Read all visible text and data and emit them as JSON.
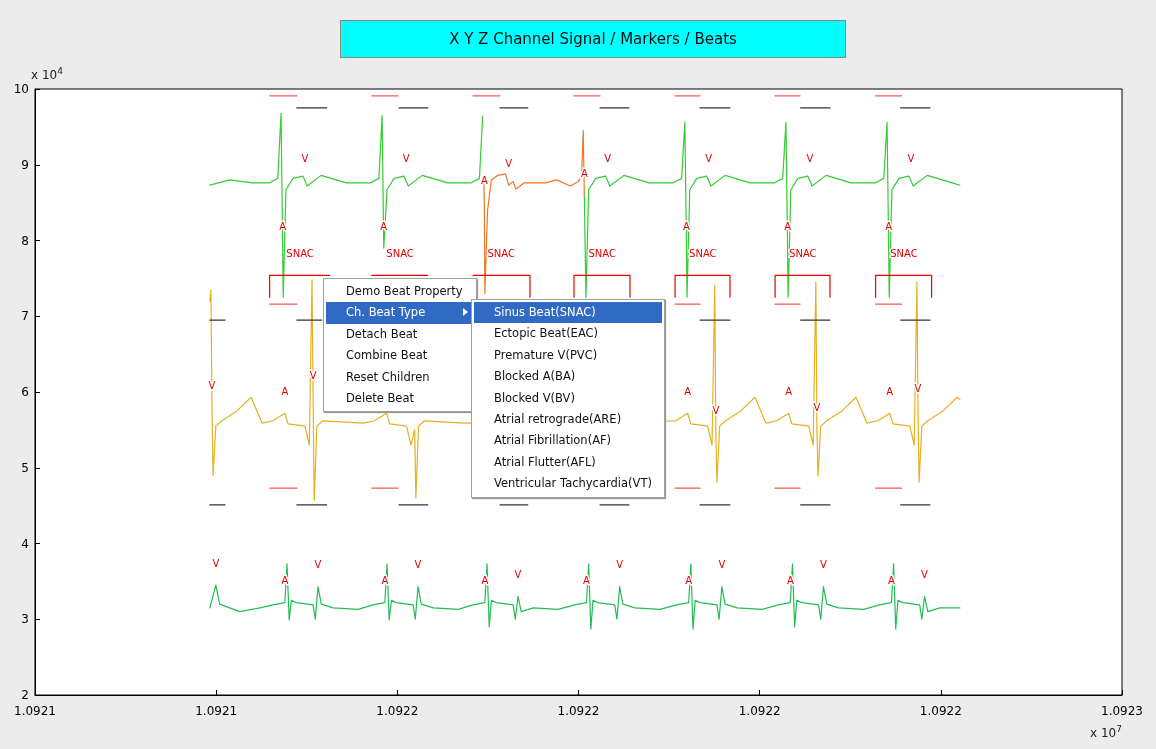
{
  "chart_data": {
    "type": "line",
    "title": "X Y Z Channel Signal / Markers / Beats",
    "grid": false,
    "xlim": [
      1.09208333,
      1.09228333
    ],
    "xticks": [
      {
        "value": 1.09208333,
        "label": "1.0921"
      },
      {
        "value": 1.09211667,
        "label": "1.0921"
      },
      {
        "value": 1.09215,
        "label": "1.0922"
      },
      {
        "value": 1.09218333,
        "label": "1.0922"
      },
      {
        "value": 1.09221667,
        "label": "1.0922"
      },
      {
        "value": 1.09225,
        "label": "1.0922"
      },
      {
        "value": 1.09228333,
        "label": "1.0923"
      }
    ],
    "ylim": [
      2,
      10
    ],
    "yticks": [
      2,
      3,
      4,
      5,
      6,
      7,
      8,
      9,
      10
    ],
    "series": [
      {
        "color": "#33cc33",
        "x": [
          1.0921155,
          1.0921192,
          1.0921233,
          1.0921264,
          1.092128,
          1.0921286,
          1.0921289,
          1.092129,
          1.0921295,
          1.0921308,
          1.0921326,
          1.092133,
          1.0921334,
          1.092136,
          1.0921406,
          1.092145,
          1.0921466,
          1.0921472,
          1.0921475,
          1.0921481,
          1.0921494,
          1.0921512,
          1.0921516,
          1.092152,
          1.0921546,
          1.0921592,
          1.0921635,
          1.0921651,
          1.0921657,
          null,
          1.0921844,
          1.0921847,
          1.0921852,
          1.0921865,
          1.0921883,
          1.0921887,
          1.0921891,
          1.0921917,
          1.0921963,
          1.0922007,
          1.0922023,
          1.0922029,
          1.0922032,
          1.0922033,
          1.0922038,
          1.0922051,
          1.0922069,
          1.0922073,
          1.0922077,
          1.0922103,
          1.0922149,
          1.0922193,
          1.0922209,
          1.0922215,
          1.0922218,
          1.0922219,
          1.0922224,
          1.0922237,
          1.0922255,
          1.0922259,
          1.0922263,
          1.0922289,
          1.0922335,
          1.0922379,
          1.0922395,
          1.0922401,
          1.0922404,
          1.0922405,
          1.092241,
          1.0922423,
          1.0922441,
          1.0922445,
          1.0922449,
          1.0922475,
          1.0922521,
          1.0922535
        ],
        "values": [
          8.73,
          8.8,
          8.76,
          8.76,
          8.82,
          9.68,
          7.9,
          7.25,
          8.67,
          8.82,
          8.85,
          8.79,
          8.72,
          8.86,
          8.76,
          8.76,
          8.82,
          9.65,
          7.9,
          8.67,
          8.82,
          8.85,
          8.79,
          8.72,
          8.86,
          8.76,
          8.76,
          8.82,
          9.64,
          null,
          8.6,
          7.25,
          8.67,
          8.82,
          8.85,
          8.79,
          8.72,
          8.86,
          8.76,
          8.76,
          8.82,
          9.56,
          7.9,
          7.25,
          8.67,
          8.82,
          8.85,
          8.79,
          8.72,
          8.86,
          8.76,
          8.76,
          8.82,
          9.56,
          7.9,
          7.25,
          8.67,
          8.82,
          8.85,
          8.79,
          8.72,
          8.86,
          8.76,
          8.76,
          8.82,
          9.56,
          7.9,
          7.25,
          8.67,
          8.82,
          8.85,
          8.79,
          8.72,
          8.86,
          8.76,
          8.73
        ]
      },
      {
        "color": "#ee7722",
        "x": [
          1.0921659,
          1.092166,
          1.0921661,
          1.0921666,
          1.0921673,
          1.0921685,
          1.0921699,
          1.0921705,
          1.0921713,
          1.0921718,
          1.0921733,
          1.0921773,
          1.0921793,
          1.0921818,
          1.0921833,
          1.0921839,
          1.0921842,
          1.0921844
        ],
        "values": [
          8.82,
          8.5,
          7.3,
          8.4,
          8.8,
          8.86,
          8.88,
          8.73,
          8.78,
          8.68,
          8.76,
          8.76,
          8.8,
          8.72,
          8.78,
          8.85,
          9.45,
          8.6
        ]
      },
      {
        "color": "#e6b020",
        "x": [
          1.0921155,
          1.0921157,
          1.0921159,
          1.0921161,
          1.0921166,
          1.0921177,
          1.0921205,
          1.0921231,
          1.0921251,
          1.0921271,
          1.0921293,
          1.0921299,
          1.092133,
          1.0921338,
          1.0921343,
          1.0921345,
          1.0921347,
          1.0921352,
          1.0921363,
          1.0921437,
          1.0921458,
          1.092148,
          1.0921486,
          1.0921517,
          1.0921525,
          1.0921532,
          1.0921534,
          1.0921539,
          1.092155,
          1.0921624,
          1.0922012,
          1.0922034,
          1.092204,
          1.0922071,
          1.0922079,
          1.0922084,
          1.0922086,
          1.0922088,
          1.0922093,
          1.0922104,
          1.0922132,
          1.0922158,
          1.0922178,
          1.0922198,
          1.092222,
          1.0922226,
          1.0922257,
          1.0922265,
          1.092227,
          1.0922272,
          1.0922274,
          1.0922279,
          1.092229,
          1.0922318,
          1.0922344,
          1.0922364,
          1.0922384,
          1.0922406,
          1.0922412,
          1.0922443,
          1.0922451,
          1.0922456,
          1.0922458,
          1.092246,
          1.0922465,
          1.0922476,
          1.0922504,
          1.092253,
          1.0922535
        ],
        "values": [
          7.2,
          7.35,
          5.79,
          4.9,
          5.55,
          5.62,
          5.75,
          5.93,
          5.59,
          5.62,
          5.72,
          5.58,
          5.55,
          5.3,
          7.48,
          5.93,
          4.57,
          5.55,
          5.62,
          5.59,
          5.62,
          5.72,
          5.58,
          5.55,
          5.3,
          5.5,
          4.6,
          5.55,
          5.62,
          5.59,
          5.62,
          5.72,
          5.58,
          5.55,
          5.3,
          7.41,
          5.46,
          4.81,
          5.55,
          5.62,
          5.75,
          5.93,
          5.59,
          5.62,
          5.72,
          5.58,
          5.55,
          5.3,
          7.45,
          5.51,
          4.89,
          5.55,
          5.62,
          5.75,
          5.93,
          5.59,
          5.62,
          5.72,
          5.58,
          5.55,
          5.3,
          7.45,
          5.75,
          4.81,
          5.55,
          5.62,
          5.75,
          5.93,
          5.9
        ]
      },
      {
        "color": "#22bb55",
        "x": [
          1.0921155,
          1.0921166,
          1.0921173,
          1.092121,
          1.0921247,
          1.0921271,
          1.0921293,
          1.0921297,
          1.0921301,
          1.0921305,
          1.0921314,
          1.0921345,
          1.0921349,
          1.0921354,
          1.092136,
          1.0921382,
          1.0921428,
          1.0921455,
          1.0921477,
          1.0921481,
          1.0921485,
          1.0921489,
          1.0921498,
          1.0921529,
          1.0921533,
          1.0921538,
          1.0921544,
          1.0921566,
          1.0921612,
          1.0921639,
          1.0921661,
          1.0921665,
          1.0921669,
          1.0921673,
          1.0921682,
          1.0921713,
          1.0921717,
          1.0921722,
          1.0921728,
          1.092175,
          1.0921796,
          1.0921826,
          1.0921848,
          1.0921852,
          1.0921856,
          1.092186,
          1.0921869,
          1.09219,
          1.0921904,
          1.0921909,
          1.0921915,
          1.0921937,
          1.0921983,
          1.0922014,
          1.0922036,
          1.092204,
          1.0922044,
          1.0922048,
          1.0922057,
          1.0922088,
          1.0922092,
          1.0922097,
          1.0922103,
          1.0922125,
          1.0922171,
          1.0922201,
          1.0922223,
          1.0922227,
          1.0922231,
          1.0922235,
          1.0922244,
          1.0922275,
          1.0922279,
          1.0922284,
          1.092229,
          1.0922312,
          1.0922358,
          1.0922387,
          1.0922409,
          1.0922413,
          1.0922417,
          1.0922421,
          1.092243,
          1.0922461,
          1.0922465,
          1.092247,
          1.0922476,
          1.0922498,
          1.0922535
        ],
        "values": [
          3.15,
          3.45,
          3.2,
          3.1,
          3.15,
          3.19,
          3.22,
          3.73,
          2.99,
          3.25,
          3.22,
          3.19,
          3.0,
          3.43,
          3.2,
          3.15,
          3.13,
          3.19,
          3.22,
          3.73,
          2.99,
          3.25,
          3.22,
          3.19,
          3.0,
          3.43,
          3.2,
          3.15,
          3.13,
          3.19,
          3.22,
          3.73,
          2.9,
          3.25,
          3.22,
          3.19,
          3.0,
          3.3,
          3.1,
          3.15,
          3.13,
          3.19,
          3.22,
          3.73,
          2.87,
          3.25,
          3.22,
          3.19,
          3.0,
          3.43,
          3.2,
          3.15,
          3.13,
          3.19,
          3.22,
          3.73,
          2.87,
          3.25,
          3.22,
          3.19,
          3.0,
          3.43,
          3.2,
          3.15,
          3.13,
          3.19,
          3.22,
          3.73,
          2.9,
          3.25,
          3.22,
          3.19,
          3.0,
          3.43,
          3.2,
          3.15,
          3.13,
          3.19,
          3.22,
          3.73,
          2.87,
          3.25,
          3.22,
          3.19,
          3.0,
          3.3,
          3.1,
          3.15,
          3.15
        ]
      },
      {
        "color": "#ee0000",
        "x": [
          1.0921265,
          1.0921265,
          1.0921376,
          null,
          1.0921453,
          1.0921556,
          null,
          1.0921639,
          1.0921744,
          1.0921744,
          null,
          1.0921825,
          1.0921825,
          1.0921928,
          1.0921928,
          null,
          1.0922011,
          1.0922011,
          1.0922112,
          1.0922112,
          null,
          1.0922195,
          1.0922195,
          1.0922296,
          1.0922296,
          null,
          1.092238,
          1.092238,
          1.0922483,
          1.0922483
        ],
        "values": [
          7.25,
          7.54,
          7.54,
          null,
          7.54,
          7.54,
          null,
          7.54,
          7.54,
          7.25,
          null,
          7.25,
          7.54,
          7.54,
          7.25,
          null,
          7.25,
          7.54,
          7.54,
          7.25,
          null,
          7.25,
          7.54,
          7.54,
          7.25,
          null,
          7.25,
          7.54,
          7.54,
          7.25
        ]
      },
      {
        "color": "#ff5555",
        "x": [
          1.0921265,
          1.0921315,
          null,
          1.0921453,
          1.0921501,
          null,
          1.0921639,
          1.0921689,
          null,
          1.0921825,
          1.0921873,
          null,
          1.0922011,
          1.0922057,
          null,
          1.0922195,
          1.0922241,
          null,
          1.092238,
          1.0922428
        ],
        "values": [
          9.91,
          9.91,
          null,
          9.91,
          9.91,
          null,
          9.91,
          9.91,
          null,
          9.91,
          9.91,
          null,
          9.91,
          9.91,
          null,
          9.91,
          9.91,
          null,
          9.91,
          9.91
        ]
      },
      {
        "color": "#ff5555",
        "x": [
          1.0921265,
          1.0921315,
          null,
          1.0922011,
          1.0922057,
          null,
          1.0922195,
          1.0922241,
          null,
          1.092238,
          1.0922428
        ],
        "values": [
          7.16,
          7.16,
          null,
          7.16,
          7.16,
          null,
          7.16,
          7.16,
          null,
          7.16,
          7.16
        ]
      },
      {
        "color": "#ff5555",
        "x": [
          1.0921265,
          1.0921315,
          null,
          1.0921453,
          1.0921501,
          null,
          1.0922011,
          1.0922057,
          null,
          1.0922195,
          1.0922241,
          null,
          1.092238,
          1.0922428
        ],
        "values": [
          4.73,
          4.73,
          null,
          4.73,
          4.73,
          null,
          4.73,
          4.73,
          null,
          4.73,
          4.73,
          null,
          4.73,
          4.73
        ]
      },
      {
        "color": "#333333",
        "x": [
          1.0921315,
          1.092137,
          null,
          1.0921503,
          1.0921556,
          null,
          1.0921689,
          1.092174,
          null,
          1.0921873,
          1.0921926,
          null,
          1.0922057,
          1.0922112,
          null,
          1.0922242,
          1.0922296,
          null,
          1.0922426,
          1.092248
        ],
        "values": [
          9.75,
          9.75,
          null,
          9.75,
          9.75,
          null,
          9.75,
          9.75,
          null,
          9.75,
          9.75,
          null,
          9.75,
          9.75,
          null,
          9.75,
          9.75,
          null,
          9.75,
          9.75
        ]
      },
      {
        "color": "#333333",
        "x": [
          1.0921155,
          1.0921183,
          null,
          1.0921315,
          1.0921361,
          null,
          1.0922057,
          1.0922112,
          null,
          1.0922242,
          1.0922296,
          null,
          1.0922426,
          1.092248
        ],
        "values": [
          6.95,
          6.95,
          null,
          6.95,
          6.95,
          null,
          6.95,
          6.95,
          null,
          6.95,
          6.95,
          null,
          6.95,
          6.95
        ]
      },
      {
        "color": "#333333",
        "x": [
          1.0921155,
          1.0921183,
          null,
          1.0921315,
          1.092137,
          null,
          1.0921503,
          1.0921556,
          null,
          1.0921689,
          1.092174,
          null,
          1.0921873,
          1.0921926,
          null,
          1.0922057,
          1.0922112,
          null,
          1.0922242,
          1.0922296,
          null,
          1.0922426,
          1.092248
        ],
        "values": [
          4.51,
          4.51,
          null,
          4.51,
          4.51,
          null,
          4.51,
          4.51,
          null,
          4.51,
          4.51,
          null,
          4.51,
          4.51,
          null,
          4.51,
          4.51,
          null,
          4.51,
          4.51,
          null,
          4.51,
          4.51
        ]
      }
    ],
    "annotations": [
      "x 10$^{4}$",
      "x 10$^{7}$",
      "Demo Beat Property",
      "Ch. Beat Type",
      "Detach Beat",
      "Combine Beat",
      "Reset Children",
      "Delete Beat",
      "Sinus Beat(SNAC)",
      "Ectopic Beat(EAC)",
      "Premature V(PVC)",
      "Blocked A(BA)",
      "Blocked V(BV)",
      "Atrial retrograde(ARE)",
      "Atrial Fibrillation(AF)",
      "Atrial Flutter(AFL)",
      "Ventricular Tachycardia(VT)",
      {
        "text": "A",
        "x": 1.0921289,
        "y": 7.9
      },
      {
        "text": "A",
        "x": 1.0921475,
        "y": 7.9
      },
      {
        "text": "A",
        "x": 1.092166,
        "y": 8.5
      },
      {
        "text": "A",
        "x": 1.0921844,
        "y": 8.6
      },
      {
        "text": "A",
        "x": 1.0922032,
        "y": 7.9
      },
      {
        "text": "A",
        "x": 1.0922218,
        "y": 7.9
      },
      {
        "text": "A",
        "x": 1.0922404,
        "y": 7.9
      },
      {
        "text": "V",
        "x": 1.092133,
        "y": 8.79
      },
      {
        "text": "V",
        "x": 1.0921516,
        "y": 8.79
      },
      {
        "text": "V",
        "x": 1.0921705,
        "y": 8.73
      },
      {
        "text": "V",
        "x": 1.0921887,
        "y": 8.79
      },
      {
        "text": "V",
        "x": 1.0922073,
        "y": 8.79
      },
      {
        "text": "V",
        "x": 1.0922259,
        "y": 8.79
      },
      {
        "text": "V",
        "x": 1.0922445,
        "y": 8.79
      },
      {
        "text": "SNAC",
        "x": 1.0921321,
        "y": 7.54
      },
      {
        "text": "SNAC",
        "x": 1.0921505,
        "y": 7.54
      },
      {
        "text": "SNAC",
        "x": 1.0921691,
        "y": 7.54
      },
      {
        "text": "SNAC",
        "x": 1.0921877,
        "y": 7.54
      },
      {
        "text": "SNAC",
        "x": 1.0922062,
        "y": 7.54
      },
      {
        "text": "SNAC",
        "x": 1.0922246,
        "y": 7.54
      },
      {
        "text": "SNAC",
        "x": 1.0922432,
        "y": 7.54
      },
      {
        "text": "V",
        "x": 1.0921159,
        "y": 5.79
      },
      {
        "text": "A",
        "x": 1.0921293,
        "y": 5.72
      },
      {
        "text": "V",
        "x": 1.0921345,
        "y": 5.93
      },
      {
        "text": "A",
        "x": 1.0922034,
        "y": 5.72
      },
      {
        "text": "V",
        "x": 1.0922086,
        "y": 5.46
      },
      {
        "text": "A",
        "x": 1.092222,
        "y": 5.72
      },
      {
        "text": "V",
        "x": 1.0922272,
        "y": 5.51
      },
      {
        "text": "A",
        "x": 1.0922406,
        "y": 5.72
      },
      {
        "text": "V",
        "x": 1.0922458,
        "y": 5.75
      },
      {
        "text": "V",
        "x": 1.0921166,
        "y": 3.45
      },
      {
        "text": "A",
        "x": 1.0921293,
        "y": 3.22
      },
      {
        "text": "V",
        "x": 1.0921354,
        "y": 3.43
      },
      {
        "text": "A",
        "x": 1.0921477,
        "y": 3.22
      },
      {
        "text": "V",
        "x": 1.0921538,
        "y": 3.43
      },
      {
        "text": "A",
        "x": 1.0921661,
        "y": 3.22
      },
      {
        "text": "V",
        "x": 1.0921722,
        "y": 3.3
      },
      {
        "text": "A",
        "x": 1.0921848,
        "y": 3.22
      },
      {
        "text": "V",
        "x": 1.0921909,
        "y": 3.43
      },
      {
        "text": "A",
        "x": 1.0922036,
        "y": 3.22
      },
      {
        "text": "V",
        "x": 1.0922097,
        "y": 3.43
      },
      {
        "text": "A",
        "x": 1.0922223,
        "y": 3.22
      },
      {
        "text": "V",
        "x": 1.0922284,
        "y": 3.43
      },
      {
        "text": "A",
        "x": 1.0922409,
        "y": 3.22
      },
      {
        "text": "V",
        "x": 1.092247,
        "y": 3.3
      }
    ]
  }
}
